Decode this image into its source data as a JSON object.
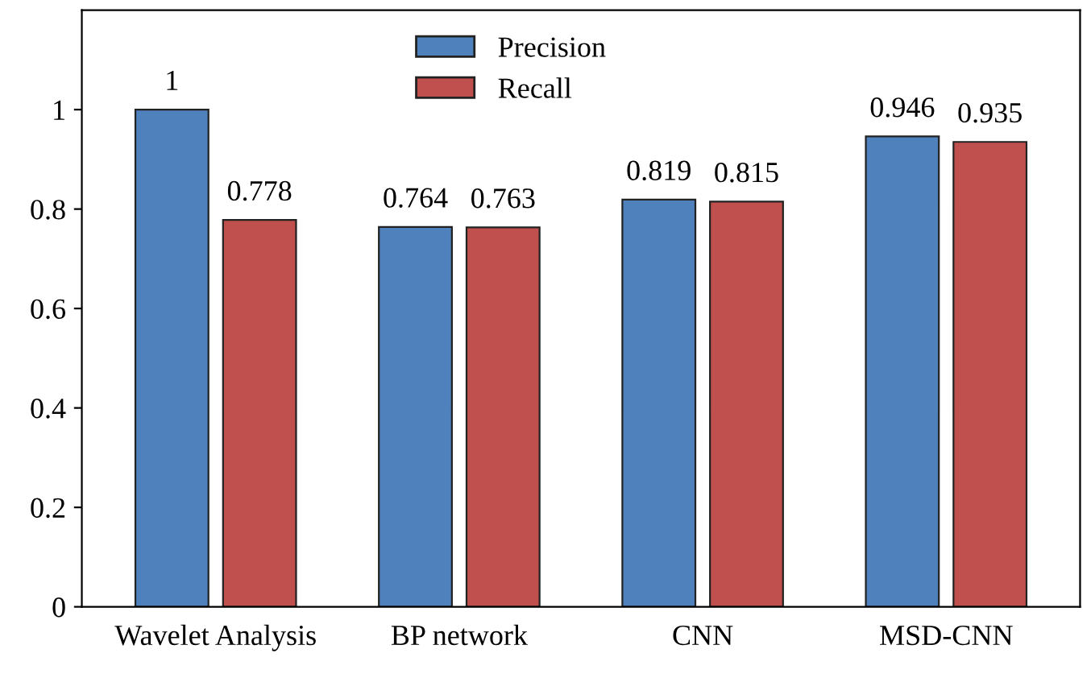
{
  "chart_data": {
    "type": "bar",
    "categories": [
      "Wavelet Analysis",
      "BP network",
      "CNN",
      "MSD-CNN"
    ],
    "series": [
      {
        "name": "Precision",
        "color": "#4f81bd",
        "values": [
          1,
          0.764,
          0.819,
          0.946
        ]
      },
      {
        "name": "Recall",
        "color": "#c0504d",
        "values": [
          0.778,
          0.763,
          0.815,
          0.935
        ]
      }
    ],
    "ylim": [
      0,
      1.2
    ],
    "yticks": [
      0,
      0.2,
      0.4,
      0.6,
      0.8,
      1
    ],
    "data_labels": true,
    "legend": "top",
    "grid": false
  }
}
